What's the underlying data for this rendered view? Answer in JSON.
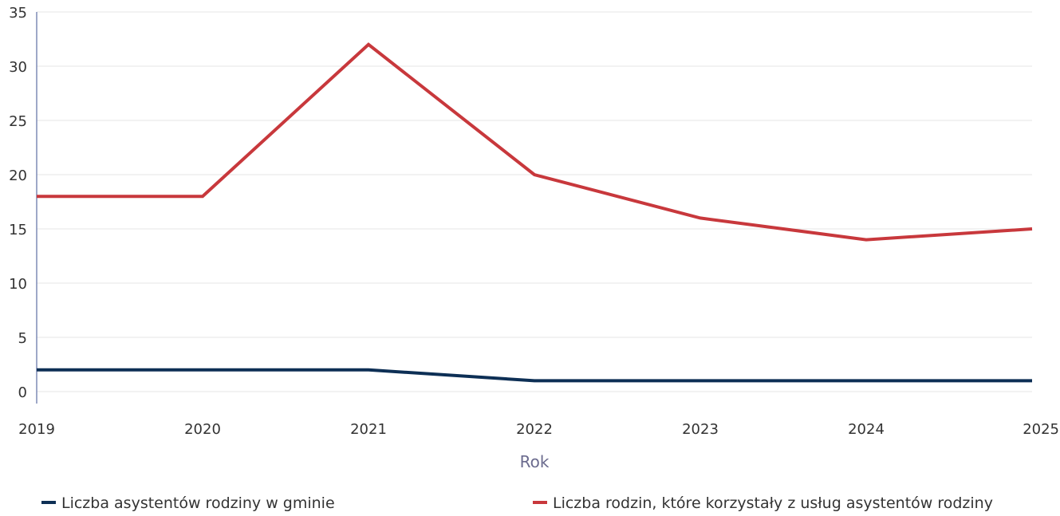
{
  "chart_data": {
    "type": "line",
    "title": "",
    "xlabel": "Rok",
    "ylabel": "",
    "categories": [
      "2019",
      "2020",
      "2021",
      "2022",
      "2023",
      "2024",
      "2025"
    ],
    "ylim": [
      0,
      35
    ],
    "yticks": [
      "0",
      "5",
      "10",
      "15",
      "20",
      "25",
      "30",
      "35"
    ],
    "grid": true,
    "legend_position": "bottom",
    "series": [
      {
        "name": "Liczba asystentów rodziny w gminie",
        "color": "#0d2f55",
        "values": [
          2,
          2,
          2,
          1,
          1,
          1,
          1
        ]
      },
      {
        "name": "Liczba rodzin, które korzystały z usług asystentów rodziny",
        "color": "#c8383c",
        "values": [
          18,
          18,
          32,
          20,
          16,
          14,
          15
        ]
      }
    ]
  }
}
